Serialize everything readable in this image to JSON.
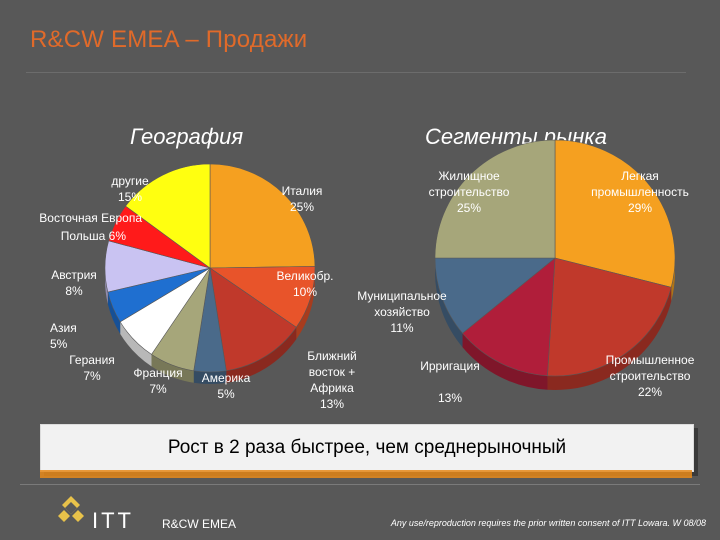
{
  "slide": {
    "title": "R&CW EMEA – Продажи",
    "banner_text": "Рост в 2 раза быстрее, чем среднерыночный",
    "footer": {
      "logo_text": "ITT",
      "name": "R&CW EMEA",
      "notice": "Any use/reproduction requires the prior written consent of ITT Lowara. W 08/08"
    }
  },
  "chart_data": [
    {
      "type": "pie",
      "title": "География",
      "series": [
        {
          "name": "Италия",
          "value": 25,
          "label": "Италия\n25%",
          "color": "#f5a020"
        },
        {
          "name": "Великобр.",
          "value": 10,
          "label": "Великобр.\n10%",
          "color": "#e8542a"
        },
        {
          "name": "Ближний восток + Африка",
          "value": 13,
          "label": "Ближний\nвосток +\nАфрика\n13%",
          "color": "#c0392b"
        },
        {
          "name": "Америка",
          "value": 5,
          "label": "Америка\n5%",
          "color": "#4a6a8a"
        },
        {
          "name": "Франция",
          "value": 7,
          "label": "Франция\n7%",
          "color": "#a6a67a"
        },
        {
          "name": "Герания",
          "value": 7,
          "label": "Герания\n7%",
          "color": "#ffffff"
        },
        {
          "name": "Азия",
          "value": 5,
          "label": "Азия\n5%",
          "color": "#1f6fd0"
        },
        {
          "name": "Австрия",
          "value": 8,
          "label": "Австрия\n8%",
          "color": "#c9c3f2"
        },
        {
          "name": "Польша",
          "value": 6,
          "label": "Польша   6%",
          "color": "#ff1a1a"
        },
        {
          "name": "Восточная Европа",
          "value": 0,
          "label": "Восточная Европа",
          "color": "#ff1a1a"
        },
        {
          "name": "другие",
          "value": 15,
          "label": "другие\n15%",
          "color": "#ffff10"
        }
      ]
    },
    {
      "type": "pie",
      "title": "Сегменты рынка",
      "series": [
        {
          "name": "Легкая промышленность",
          "value": 29,
          "label": "Легкая\nпромышленность\n29%",
          "color": "#f5a020"
        },
        {
          "name": "Промышленное строительство",
          "value": 22,
          "label": "Промышленное\nстроительство\n22%",
          "color": "#c0392b"
        },
        {
          "name": "Ирригация",
          "value": 13,
          "label": "Ирригация\n\n13%",
          "color": "#b01e3a"
        },
        {
          "name": "Муниципальное хозяйство",
          "value": 11,
          "label": "Муниципальное\nхозяйство\n11%",
          "color": "#4a6a8a"
        },
        {
          "name": "Жилищное строительство",
          "value": 25,
          "label": "Жилищное\nстроительство\n25%",
          "color": "#a6a67a"
        }
      ]
    }
  ]
}
